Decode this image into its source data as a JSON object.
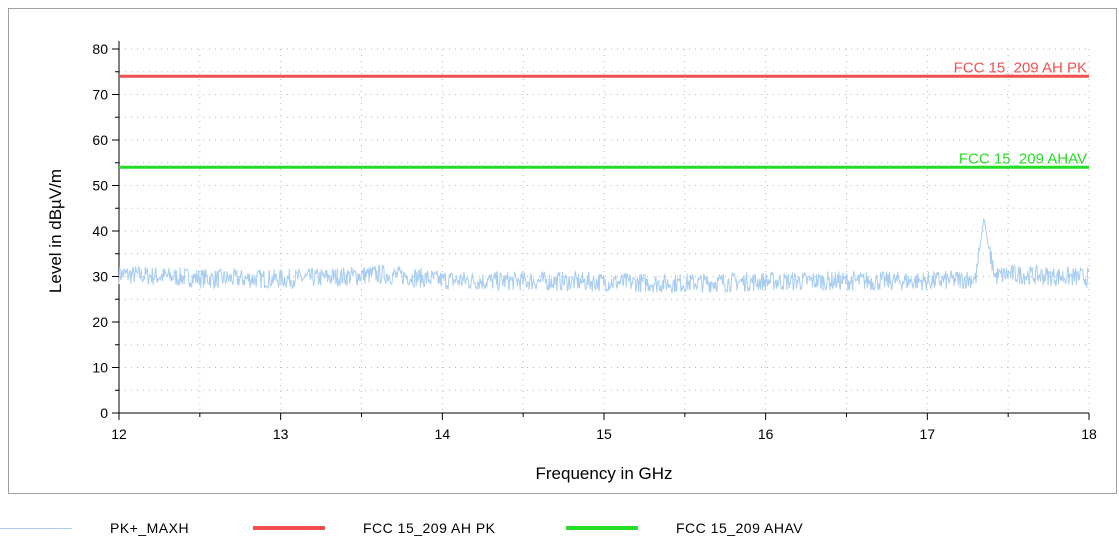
{
  "chart_data": {
    "type": "line",
    "title": "",
    "xlabel": "Frequency in GHz",
    "ylabel": "Level in dBµV/m",
    "xlim": [
      12,
      18
    ],
    "ylim": [
      0,
      80
    ],
    "x_ticks": [
      "12",
      "13",
      "14",
      "15",
      "16",
      "17",
      "18"
    ],
    "y_ticks": [
      "0",
      "10",
      "20",
      "30",
      "40",
      "50",
      "60",
      "70",
      "80"
    ],
    "grid": true,
    "legend_position": "bottom",
    "series": [
      {
        "name": "PK+_MAXH",
        "color": "#a8cdf0",
        "style": "noisy-trace",
        "noise_amplitude": 1.2,
        "x": [
          12.0,
          12.3,
          12.6,
          13.0,
          13.3,
          13.6,
          13.8,
          14.0,
          14.3,
          14.6,
          15.0,
          15.4,
          15.8,
          16.2,
          16.6,
          17.0,
          17.3,
          17.35,
          17.38,
          17.42,
          17.5,
          17.8,
          18.0
        ],
        "y": [
          30.5,
          30.0,
          29.5,
          29.5,
          29.8,
          30.5,
          30.0,
          29.2,
          29.0,
          29.0,
          28.8,
          28.5,
          28.8,
          29.0,
          29.0,
          29.0,
          29.5,
          43.0,
          36.0,
          30.0,
          30.5,
          30.0,
          29.8
        ]
      },
      {
        "name": "FCC 15_209 AH PK",
        "color": "#f05050",
        "x": [
          12,
          18
        ],
        "y": [
          74,
          74
        ]
      },
      {
        "name": "FCC 15_209 AHAV",
        "color": "#22dd22",
        "x": [
          12,
          18
        ],
        "y": [
          54,
          54
        ]
      }
    ],
    "annotations": [
      {
        "text": "FCC 15_209 AH PK",
        "x": 18,
        "y": 74,
        "color": "#f05050"
      },
      {
        "text": "FCC 15_209 AHAV",
        "x": 18,
        "y": 54,
        "color": "#22dd22"
      }
    ]
  },
  "legend": {
    "items": [
      {
        "label": "PK+_MAXH",
        "color": "#a8cdf0"
      },
      {
        "label": "FCC 15_209 AH PK",
        "color": "#f05050"
      },
      {
        "label": "FCC 15_209 AHAV",
        "color": "#22dd22"
      }
    ]
  }
}
